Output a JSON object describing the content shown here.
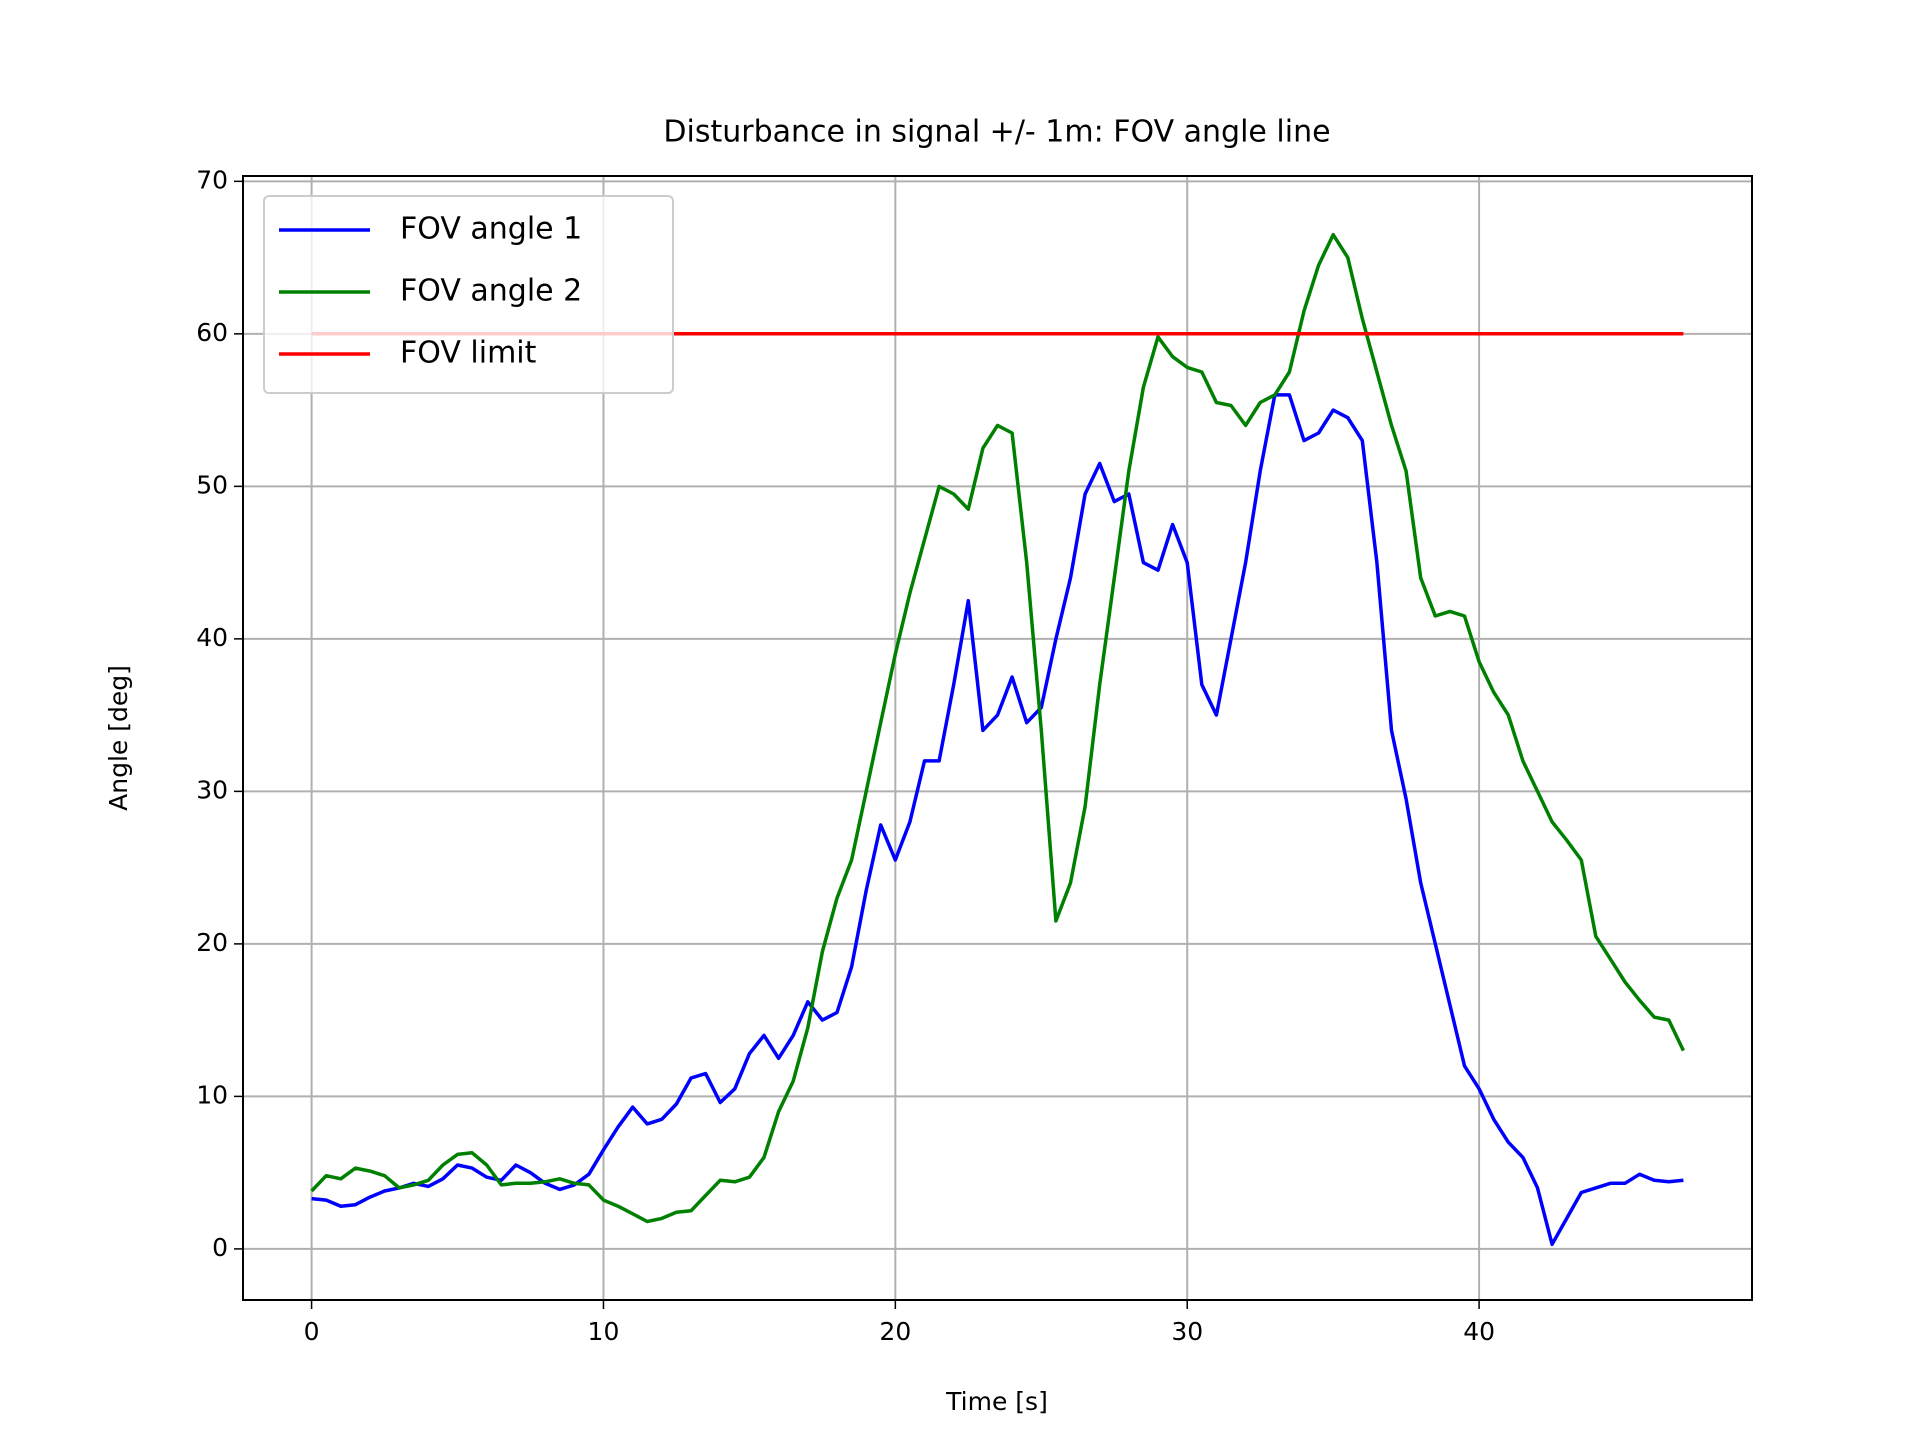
{
  "chart_data": {
    "type": "line",
    "title": "Disturbance in signal +/- 1m: FOV angle line",
    "xlabel": "Time [s]",
    "ylabel": "Angle [deg]",
    "x": [
      0,
      0.5,
      1,
      1.5,
      2,
      2.5,
      3,
      3.5,
      4,
      4.5,
      5,
      5.5,
      6,
      6.5,
      7,
      7.5,
      8,
      8.5,
      9,
      9.5,
      10,
      10.5,
      11,
      11.5,
      12,
      12.5,
      13,
      13.5,
      14,
      14.5,
      15,
      15.5,
      16,
      16.5,
      17,
      17.5,
      18,
      18.5,
      19,
      19.5,
      20,
      20.5,
      21,
      21.5,
      22,
      22.5,
      23,
      23.5,
      24,
      24.5,
      25,
      25.5,
      26,
      26.5,
      27,
      27.5,
      28,
      28.5,
      29,
      29.5,
      30,
      30.5,
      31,
      31.5,
      32,
      32.5,
      33,
      33.5,
      34,
      34.5,
      35,
      35.5,
      36,
      36.5,
      37,
      37.5,
      38,
      38.5,
      39,
      39.5,
      40,
      40.5,
      41,
      41.5,
      42,
      42.5,
      43,
      43.5,
      44,
      44.5,
      45,
      45.5,
      46,
      46.5,
      47
    ],
    "series": [
      {
        "name": "FOV angle 1",
        "color": "#0000ff",
        "values": [
          3.3,
          3.2,
          2.8,
          2.9,
          3.4,
          3.8,
          4.0,
          4.3,
          4.1,
          4.6,
          5.5,
          5.3,
          4.7,
          4.5,
          5.5,
          5.0,
          4.3,
          3.9,
          4.2,
          4.9,
          6.5,
          8.0,
          9.3,
          8.2,
          8.5,
          9.5,
          11.2,
          11.5,
          9.6,
          10.5,
          12.8,
          14.0,
          12.5,
          14.0,
          16.2,
          15.0,
          15.5,
          18.5,
          23.5,
          27.8,
          25.5,
          28,
          32,
          32,
          37,
          42.5,
          34,
          35,
          37.5,
          34.5,
          35.5,
          40,
          44,
          49.5,
          51.5,
          49,
          49.5,
          45,
          44.5,
          47.5,
          45,
          37,
          35,
          40,
          45,
          51,
          56,
          56,
          53,
          53.5,
          55,
          54.5,
          53,
          45,
          34,
          29.5,
          24,
          20,
          16,
          12,
          10.5,
          8.5,
          7,
          6,
          4,
          0.3,
          2,
          3.7,
          4,
          4.3,
          4.3,
          4.9,
          4.5,
          4.4,
          4.5
        ]
      },
      {
        "name": "FOV angle 2",
        "color": "#008000",
        "values": [
          3.8,
          4.8,
          4.6,
          5.3,
          5.1,
          4.8,
          4.0,
          4.2,
          4.5,
          5.5,
          6.2,
          6.3,
          5.5,
          4.2,
          4.3,
          4.3,
          4.4,
          4.6,
          4.3,
          4.2,
          3.2,
          2.8,
          2.3,
          1.8,
          2.0,
          2.4,
          2.5,
          3.5,
          4.5,
          4.4,
          4.7,
          6.0,
          9.0,
          11.0,
          14.5,
          19.5,
          23,
          25.5,
          30,
          34.5,
          39,
          43,
          46.5,
          50,
          49.5,
          48.5,
          52.5,
          54,
          53.5,
          45,
          34,
          21.5,
          24,
          29,
          37,
          44,
          51,
          56.5,
          59.8,
          58.5,
          57.8,
          57.5,
          55.5,
          55.3,
          54,
          55.5,
          56,
          57.5,
          61.5,
          64.5,
          66.5,
          65,
          61,
          57.5,
          54,
          51,
          44,
          41.5,
          41.8,
          41.5,
          38.5,
          36.5,
          35,
          32,
          30,
          28,
          26.8,
          25.5,
          20.5,
          19,
          17.5,
          16.3,
          15.2,
          15,
          13
        ]
      },
      {
        "name": "FOV limit",
        "color": "#ff0000",
        "x": [
          0,
          47
        ],
        "values": [
          60,
          60
        ]
      }
    ],
    "xlim": [
      -2.35,
      49.35
    ],
    "ylim": [
      -3.35,
      70.35
    ],
    "xticks": [
      0,
      10,
      20,
      30,
      40
    ],
    "yticks": [
      0,
      10,
      20,
      30,
      40,
      50,
      60,
      70
    ],
    "grid": true,
    "legend": "upper left"
  }
}
